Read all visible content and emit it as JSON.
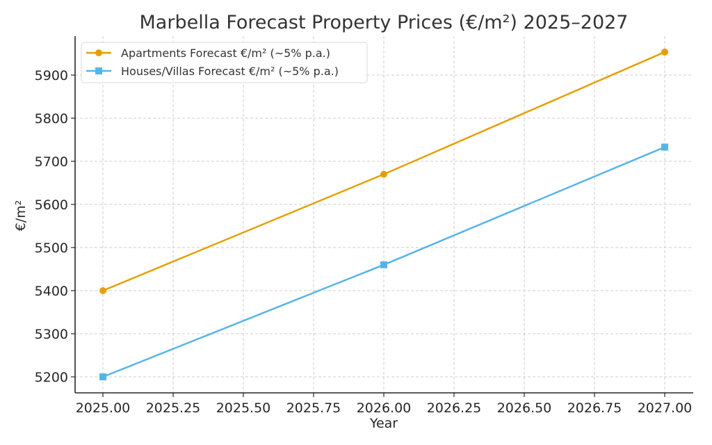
{
  "chart_data": {
    "type": "line",
    "title": "Marbella Forecast Property Prices (€/m²) 2025–2027",
    "xlabel": "Year",
    "ylabel": "€/m²",
    "x": [
      2025,
      2026,
      2027
    ],
    "xlim": [
      2024.95,
      2027.05
    ],
    "ylim": [
      5163,
      5990
    ],
    "xticks": [
      2025.0,
      2025.25,
      2025.5,
      2025.75,
      2026.0,
      2026.25,
      2026.5,
      2026.75,
      2027.0
    ],
    "xtick_labels": [
      "2025.00",
      "2025.25",
      "2025.50",
      "2025.75",
      "2026.00",
      "2026.25",
      "2026.50",
      "2026.75",
      "2027.00"
    ],
    "yticks": [
      5200,
      5300,
      5400,
      5500,
      5600,
      5700,
      5800,
      5900
    ],
    "ytick_labels": [
      "5200",
      "5300",
      "5400",
      "5500",
      "5600",
      "5700",
      "5800",
      "5900"
    ],
    "grid": true,
    "legend_position": "top-left",
    "series": [
      {
        "name": "Apartments Forecast €/m² (~5% p.a.)",
        "values": [
          5400,
          5670,
          5953.5
        ],
        "color": "#E69F00",
        "marker": "circle"
      },
      {
        "name": "Houses/Villas Forecast €/m² (~5% p.a.)",
        "values": [
          5200,
          5460,
          5733
        ],
        "color": "#56B4E9",
        "marker": "square"
      }
    ]
  }
}
